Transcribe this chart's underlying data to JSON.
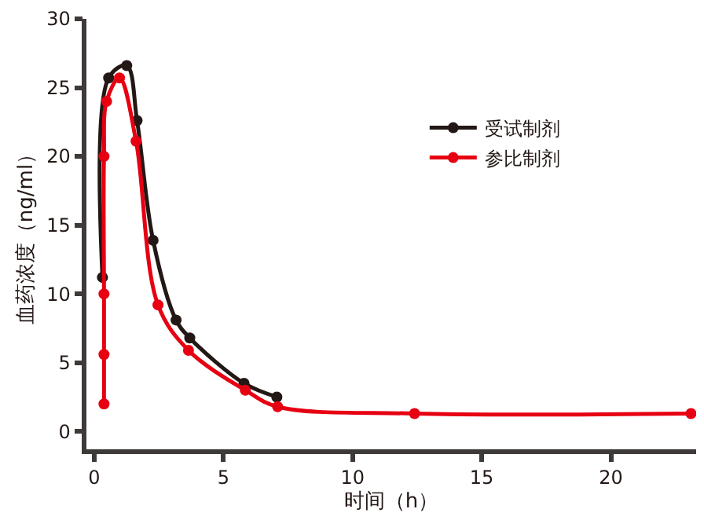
{
  "chart_data": {
    "type": "line",
    "xlabel": "时间（h）",
    "ylabel": "血药浓度（ng/ml）",
    "xlim": [
      -0.3,
      23.3
    ],
    "ylim": [
      -1.3,
      30
    ],
    "xticks": [
      0,
      5,
      10,
      15,
      20
    ],
    "yticks": [
      0,
      5,
      10,
      15,
      20,
      25,
      30
    ],
    "legend": "top right",
    "marker": "circle",
    "line_style": "solid",
    "series": [
      {
        "name": "受试制剂",
        "color": "#231815",
        "x": [
          0.32,
          0.56,
          1.26,
          1.66,
          2.28,
          3.17,
          3.7,
          5.8,
          7.07
        ],
        "values": [
          11.2,
          25.7,
          26.6,
          22.6,
          13.9,
          8.1,
          6.8,
          3.5,
          2.5
        ]
      },
      {
        "name": "参比制剂",
        "color": "#e60012",
        "x": [
          0.38,
          0.38,
          0.38,
          0.38,
          0.48,
          0.98,
          1.62,
          2.47,
          3.65,
          5.85,
          7.1,
          12.4,
          23.1
        ],
        "values": [
          2.0,
          5.6,
          10.0,
          20.0,
          24.0,
          25.7,
          21.1,
          9.2,
          5.9,
          3.0,
          1.8,
          1.3,
          1.3
        ]
      }
    ]
  }
}
